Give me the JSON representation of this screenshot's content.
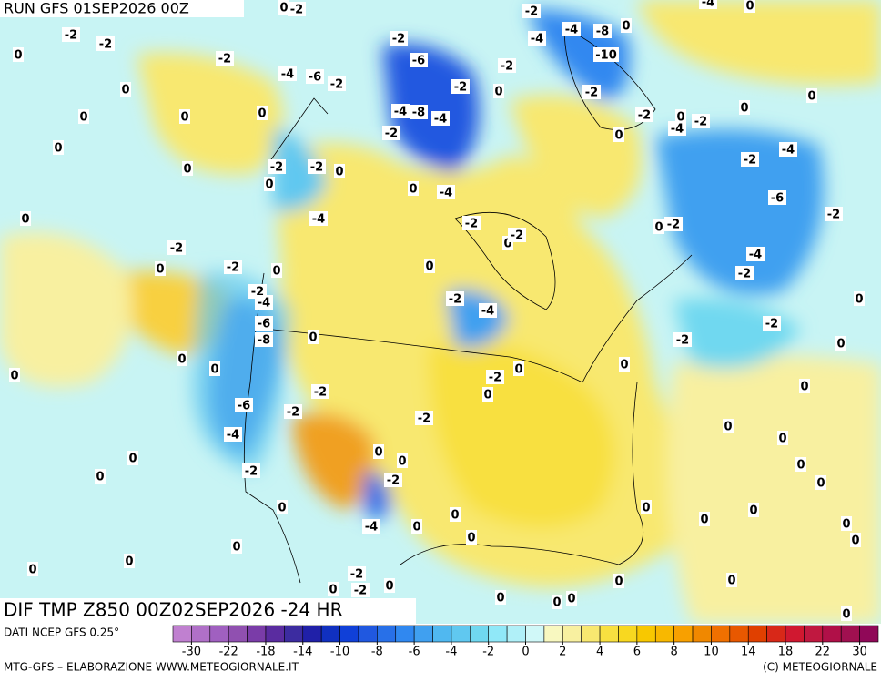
{
  "header": {
    "run": "RUN GFS 01SEP2026 00Z",
    "field": "DIF TMP Z850 00Z02SEP2026 -24 HR"
  },
  "footer": {
    "source": "DATI NCEP GFS 0.25°",
    "credit": "MTG-GFS – ELABORAZIONE WWW.METEOGIORNALE.IT",
    "copyright": "(C) METEOGIORNALE"
  },
  "colorbar": {
    "colors": [
      "#c080d0",
      "#b070c8",
      "#a060c0",
      "#9050b0",
      "#7a3ca8",
      "#5a2ca0",
      "#3c2ca0",
      "#2020a8",
      "#1030c0",
      "#1040d8",
      "#2058e0",
      "#2870e8",
      "#3088f0",
      "#40a0f0",
      "#50b8f0",
      "#60c8f0",
      "#70d8f0",
      "#90e8f8",
      "#b0f0f8",
      "#d0f8f8",
      "#f8f8c0",
      "#f8f0a0",
      "#f8e870",
      "#f8e040",
      "#f8d820",
      "#f8c800",
      "#f8b800",
      "#f8a000",
      "#f08800",
      "#f07000",
      "#e85800",
      "#e04000",
      "#d82818",
      "#d01830",
      "#c01840",
      "#b01048",
      "#a01050",
      "#900858"
    ],
    "ticks": [
      -30,
      -22,
      -18,
      -14,
      -10,
      -8,
      -6,
      -4,
      -2,
      0,
      2,
      4,
      6,
      8,
      10,
      14,
      18,
      22,
      30
    ]
  },
  "contour_labels": [
    -2,
    -2,
    0,
    -2,
    -4,
    -6,
    -2,
    0,
    0,
    0,
    0,
    0,
    0,
    -2,
    -2,
    0,
    0,
    0,
    -4,
    -2,
    0,
    -2,
    0,
    -2,
    -4,
    -6,
    -8,
    0,
    0,
    0,
    0,
    -2,
    -6,
    -2,
    -4,
    0,
    0,
    -2,
    0,
    -4,
    0,
    0,
    0,
    -2,
    -2,
    0,
    0,
    -2,
    -6,
    -4,
    -8,
    -4,
    -2,
    -2,
    0,
    -2,
    -4,
    0,
    -2,
    0,
    -2,
    0,
    -2,
    -4,
    0,
    -2,
    0,
    -2,
    0,
    0,
    -2,
    0,
    0,
    0,
    -2,
    -4,
    -4,
    -8,
    -10,
    0,
    -2,
    -2,
    0,
    -2,
    -4,
    0,
    0,
    0,
    0,
    -4,
    -2,
    -6,
    -2,
    -2,
    0,
    -4,
    -2,
    0,
    -2,
    -2,
    0,
    0,
    0,
    0,
    0,
    0,
    0,
    0,
    0,
    0,
    0,
    0,
    0,
    0,
    0,
    0,
    0,
    0,
    0,
    -2,
    -4,
    -2
  ]
}
